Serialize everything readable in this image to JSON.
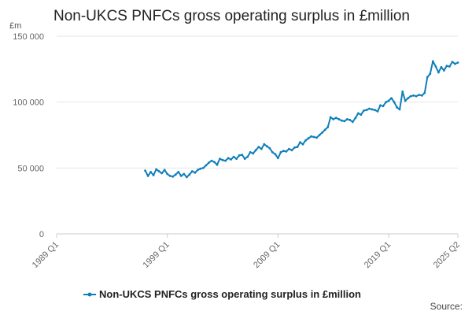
{
  "colors": {
    "series": "#0f7fbb",
    "grid": "#e6e6e6",
    "axis": "#cccccc"
  },
  "chart_data": {
    "type": "line",
    "title": "Non-UKCS PNFCs gross operating surplus in £million",
    "unit_label": "£m",
    "ylim": [
      0,
      150000
    ],
    "yticks": [
      0,
      50000,
      100000,
      150000
    ],
    "ytick_labels": [
      "0",
      "50 000",
      "100 000",
      "150 000"
    ],
    "xlim": [
      1989.0,
      2025.25
    ],
    "xticks": [
      1989.0,
      1999.0,
      2009.0,
      2019.0,
      2025.25
    ],
    "xtick_labels": [
      "1989 Q1",
      "1999 Q1",
      "2009 Q1",
      "2019 Q1",
      "2025 Q2"
    ],
    "legend_position": "bottom-center",
    "grid": true,
    "source": "Source:",
    "series": [
      {
        "name": "Non-UKCS PNFCs gross operating surplus in £million",
        "points": [
          [
            1997.0,
            48000
          ],
          [
            1997.25,
            44000
          ],
          [
            1997.5,
            47000
          ],
          [
            1997.75,
            44500
          ],
          [
            1998.0,
            49000
          ],
          [
            1998.25,
            47500
          ],
          [
            1998.5,
            46000
          ],
          [
            1998.75,
            48500
          ],
          [
            1999.0,
            45500
          ],
          [
            1999.25,
            44000
          ],
          [
            1999.5,
            43500
          ],
          [
            1999.75,
            45000
          ],
          [
            2000.0,
            47000
          ],
          [
            2000.25,
            44000
          ],
          [
            2000.5,
            45500
          ],
          [
            2000.75,
            43000
          ],
          [
            2001.0,
            45000
          ],
          [
            2001.25,
            47500
          ],
          [
            2001.5,
            46500
          ],
          [
            2001.75,
            48500
          ],
          [
            2002.0,
            49500
          ],
          [
            2002.25,
            50000
          ],
          [
            2002.5,
            52000
          ],
          [
            2002.75,
            54000
          ],
          [
            2003.0,
            55500
          ],
          [
            2003.25,
            54500
          ],
          [
            2003.5,
            52500
          ],
          [
            2003.75,
            57000
          ],
          [
            2004.0,
            56000
          ],
          [
            2004.25,
            55500
          ],
          [
            2004.5,
            57500
          ],
          [
            2004.75,
            56500
          ],
          [
            2005.0,
            58500
          ],
          [
            2005.25,
            57000
          ],
          [
            2005.5,
            59500
          ],
          [
            2005.75,
            60000
          ],
          [
            2006.0,
            57000
          ],
          [
            2006.25,
            58500
          ],
          [
            2006.5,
            62000
          ],
          [
            2006.75,
            61000
          ],
          [
            2007.0,
            63500
          ],
          [
            2007.25,
            66000
          ],
          [
            2007.5,
            64500
          ],
          [
            2007.75,
            68000
          ],
          [
            2008.0,
            66500
          ],
          [
            2008.25,
            65000
          ],
          [
            2008.5,
            62000
          ],
          [
            2008.75,
            60500
          ],
          [
            2009.0,
            57500
          ],
          [
            2009.25,
            62000
          ],
          [
            2009.5,
            63000
          ],
          [
            2009.75,
            62500
          ],
          [
            2010.0,
            64500
          ],
          [
            2010.25,
            63500
          ],
          [
            2010.5,
            65500
          ],
          [
            2010.75,
            66000
          ],
          [
            2011.0,
            69500
          ],
          [
            2011.25,
            68000
          ],
          [
            2011.5,
            71000
          ],
          [
            2011.75,
            72500
          ],
          [
            2012.0,
            74000
          ],
          [
            2012.25,
            73500
          ],
          [
            2012.5,
            73000
          ],
          [
            2012.75,
            75000
          ],
          [
            2013.0,
            77000
          ],
          [
            2013.25,
            79000
          ],
          [
            2013.5,
            81000
          ],
          [
            2013.75,
            88500
          ],
          [
            2014.0,
            87000
          ],
          [
            2014.25,
            88000
          ],
          [
            2014.5,
            87000
          ],
          [
            2014.75,
            86000
          ],
          [
            2015.0,
            85500
          ],
          [
            2015.25,
            87000
          ],
          [
            2015.5,
            86500
          ],
          [
            2015.75,
            85000
          ],
          [
            2016.0,
            88000
          ],
          [
            2016.25,
            91500
          ],
          [
            2016.5,
            90500
          ],
          [
            2016.75,
            93500
          ],
          [
            2017.0,
            94000
          ],
          [
            2017.25,
            95000
          ],
          [
            2017.5,
            94500
          ],
          [
            2017.75,
            94000
          ],
          [
            2018.0,
            93000
          ],
          [
            2018.25,
            97500
          ],
          [
            2018.5,
            97000
          ],
          [
            2018.75,
            100000
          ],
          [
            2019.0,
            101000
          ],
          [
            2019.25,
            103000
          ],
          [
            2019.5,
            100000
          ],
          [
            2019.75,
            96000
          ],
          [
            2020.0,
            94500
          ],
          [
            2020.25,
            108000
          ],
          [
            2020.5,
            101000
          ],
          [
            2020.75,
            103000
          ],
          [
            2021.0,
            104500
          ],
          [
            2021.25,
            105000
          ],
          [
            2021.5,
            104500
          ],
          [
            2021.75,
            105500
          ],
          [
            2022.0,
            105000
          ],
          [
            2022.25,
            107000
          ],
          [
            2022.5,
            119000
          ],
          [
            2022.75,
            121500
          ],
          [
            2023.0,
            131000
          ],
          [
            2023.25,
            127000
          ],
          [
            2023.5,
            122500
          ],
          [
            2023.75,
            126500
          ],
          [
            2024.0,
            124000
          ],
          [
            2024.25,
            127500
          ],
          [
            2024.5,
            127000
          ],
          [
            2024.75,
            130500
          ],
          [
            2025.0,
            129000
          ],
          [
            2025.25,
            130000
          ]
        ]
      }
    ]
  }
}
